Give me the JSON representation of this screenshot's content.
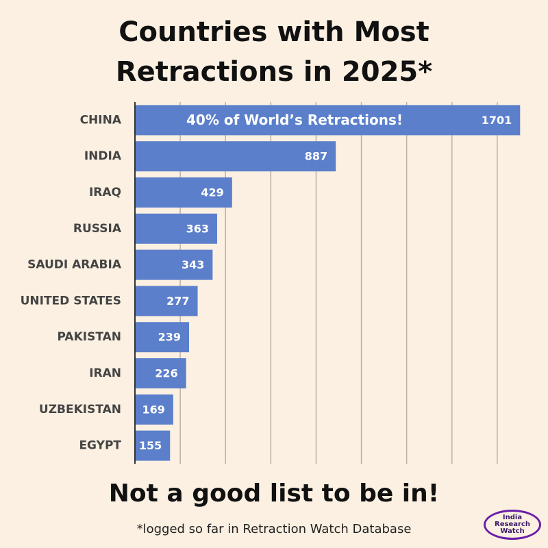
{
  "chart_data": {
    "type": "bar",
    "orientation": "horizontal",
    "title": "Countries with Most Retractions in 2025*",
    "categories": [
      "CHINA",
      "INDIA",
      "IRAQ",
      "RUSSIA",
      "SAUDI ARABIA",
      "UNITED STATES",
      "PAKISTAN",
      "IRAN",
      "UZBEKISTAN",
      "EGYPT"
    ],
    "values": [
      1701,
      887,
      429,
      363,
      343,
      277,
      239,
      226,
      169,
      155
    ],
    "color": "#5b7fcb",
    "xlim": [
      0,
      1800
    ],
    "xticks": [
      0,
      200,
      400,
      600,
      800,
      1000,
      1200,
      1400,
      1600
    ],
    "grid": true,
    "annotation": "40% of World’s Retractions!",
    "subtitle": "Not a good list to be in!",
    "footnote": "*logged so far in Retraction Watch Database",
    "logo": "India Research Watch"
  }
}
